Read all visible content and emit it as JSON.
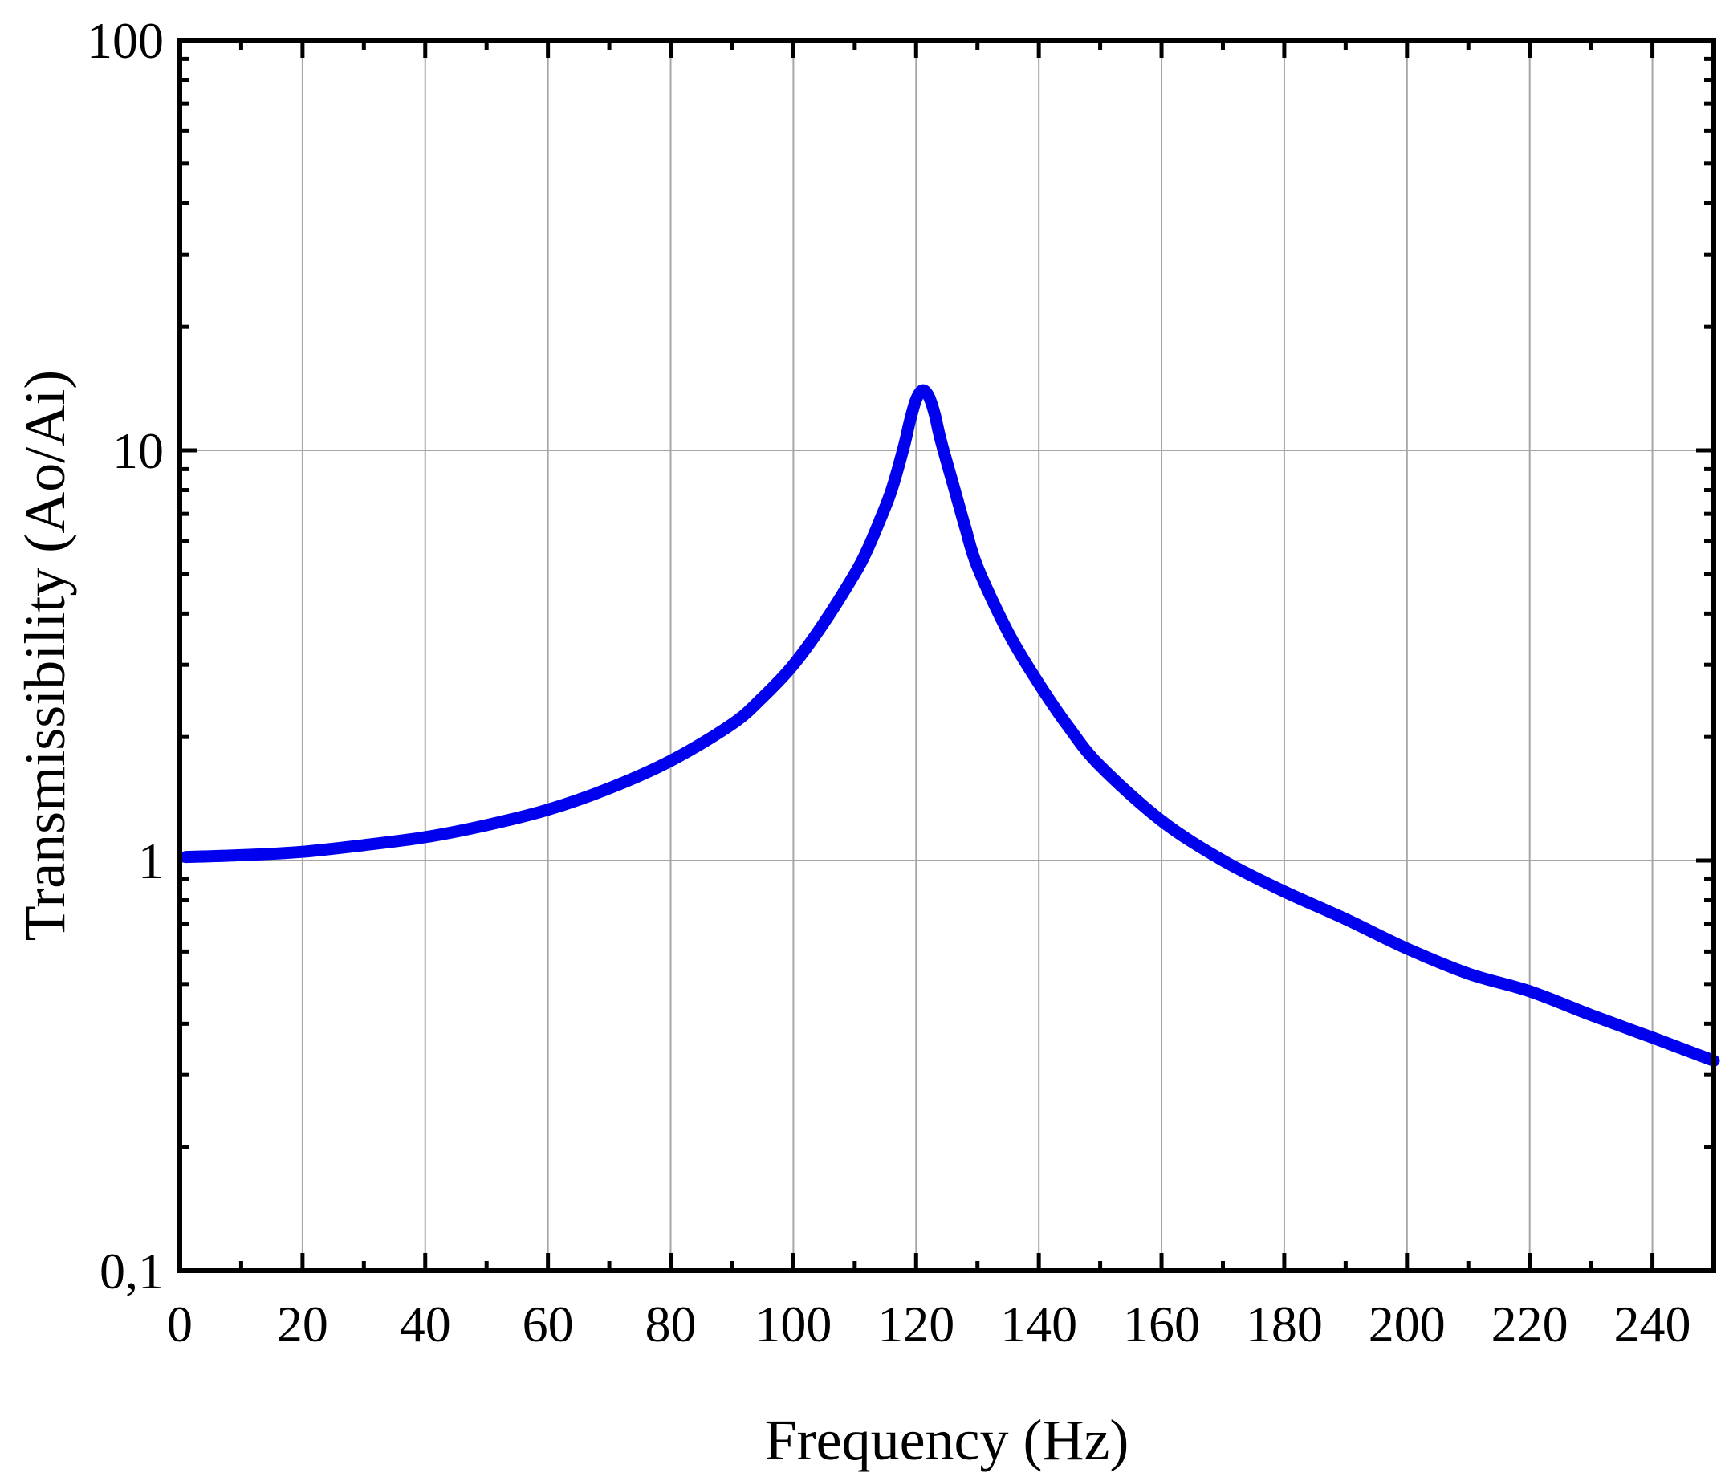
{
  "chart_data": {
    "type": "line",
    "title": "",
    "xlabel": "Frequency (Hz)",
    "ylabel": "Transmissibility (Ao/Ai)",
    "xlim": [
      0,
      250
    ],
    "ylim": [
      0.1,
      100
    ],
    "yscale": "log",
    "grid": true,
    "x_ticks": [
      0,
      20,
      40,
      60,
      80,
      100,
      120,
      140,
      160,
      180,
      200,
      220,
      240
    ],
    "x_tick_labels": [
      "0",
      "20",
      "40",
      "60",
      "80",
      "100",
      "120",
      "140",
      "160",
      "180",
      "200",
      "220",
      "240"
    ],
    "y_ticks": [
      0.1,
      1,
      10,
      100
    ],
    "y_tick_labels": [
      "0,1",
      "1",
      "10",
      "100"
    ],
    "series": [
      {
        "color": "#0000ee",
        "x": [
          1,
          10,
          20,
          30,
          40,
          50,
          60,
          70,
          80,
          90,
          95,
          100,
          105,
          110,
          112,
          114,
          116,
          118,
          119,
          120,
          121,
          122,
          123,
          124,
          126,
          128,
          130,
          135,
          140,
          145,
          150,
          160,
          170,
          180,
          190,
          200,
          210,
          220,
          230,
          240,
          250
        ],
        "y": [
          1.02,
          1.03,
          1.05,
          1.09,
          1.14,
          1.22,
          1.33,
          1.5,
          1.75,
          2.15,
          2.5,
          3.0,
          3.8,
          5.0,
          5.7,
          6.7,
          8.0,
          10.2,
          11.8,
          13.3,
          14.0,
          13.6,
          12.3,
          10.6,
          8.3,
          6.5,
          5.2,
          3.6,
          2.7,
          2.1,
          1.7,
          1.25,
          1.0,
          0.84,
          0.72,
          0.61,
          0.53,
          0.48,
          0.42,
          0.37,
          0.325
        ]
      }
    ]
  }
}
